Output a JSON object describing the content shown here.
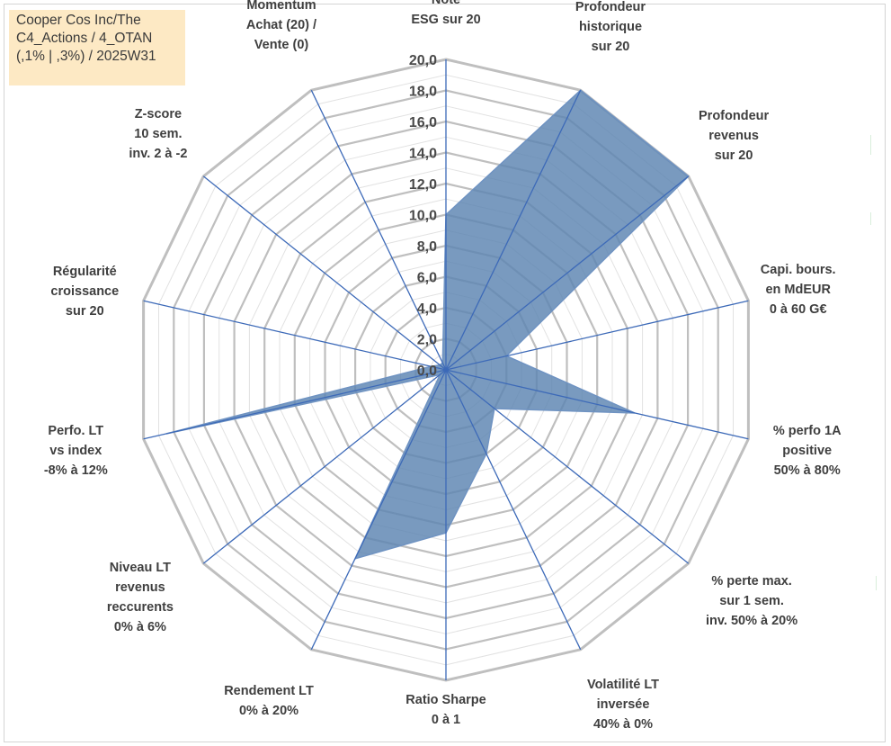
{
  "title": {
    "lines": [
      "Cooper Cos Inc/The",
      "C4_Actions / 4_OTAN",
      "(,1% | ,3%) / 2025W31"
    ]
  },
  "chart_data": {
    "type": "radar",
    "rmin": 0,
    "rmax": 20,
    "tick_step": 2,
    "tick_labels": [
      "0,0",
      "2,0",
      "4,0",
      "6,0",
      "8,0",
      "10,0",
      "12,0",
      "14,0",
      "16,0",
      "18,0",
      "20,0"
    ],
    "axes": [
      {
        "label": [
          "Note",
          "ESG sur 20"
        ],
        "value": 10.0
      },
      {
        "label": [
          "Profondeur",
          "historique",
          "sur 20"
        ],
        "value": 20.0
      },
      {
        "label": [
          "Profondeur",
          "revenus",
          "sur 20"
        ],
        "value": 20.0
      },
      {
        "label": [
          "Capi. bours.",
          "en MdEUR",
          "0 à 60 G€"
        ],
        "value": 4.0
      },
      {
        "label": [
          "% perfo 1A",
          "positive",
          "50% à 80%"
        ],
        "value": 12.5
      },
      {
        "label": [
          "% perte max.",
          "sur 1 sem.",
          "inv. 50% à 20%"
        ],
        "value": 4.0
      },
      {
        "label": [
          "Volatilité LT",
          "inversée",
          "40% à 0%"
        ],
        "value": 6.0
      },
      {
        "label": [
          "Ratio Sharpe",
          "0 à 1"
        ],
        "value": 10.5
      },
      {
        "label": [
          "Rendement LT",
          "0% à 20%"
        ],
        "value": 13.5
      },
      {
        "label": [
          "Niveau LT",
          "revenus",
          "reccurents",
          "0% à 6%"
        ],
        "value": 0.5
      },
      {
        "label": [
          "Perfo. LT",
          "vs index",
          "-8% à 12%"
        ],
        "value": 18.5
      },
      {
        "label": [
          "Régularité",
          "croissance",
          "sur 20"
        ],
        "value": 1.0
      },
      {
        "label": [
          "Z-score",
          "10 sem.",
          "inv. 2 à -2"
        ],
        "value": 0.5
      },
      {
        "label": [
          "Momentum",
          "Achat (20) /",
          "Vente (0)"
        ],
        "value": 0.5
      }
    ],
    "colors": {
      "fill": "#5b84b1",
      "fill_stroke": "#6f93c2",
      "spoke": "#3d6ab8",
      "grid_major": "#bfbfbf",
      "grid_minor": "#e2e2e2"
    },
    "grid": true
  }
}
